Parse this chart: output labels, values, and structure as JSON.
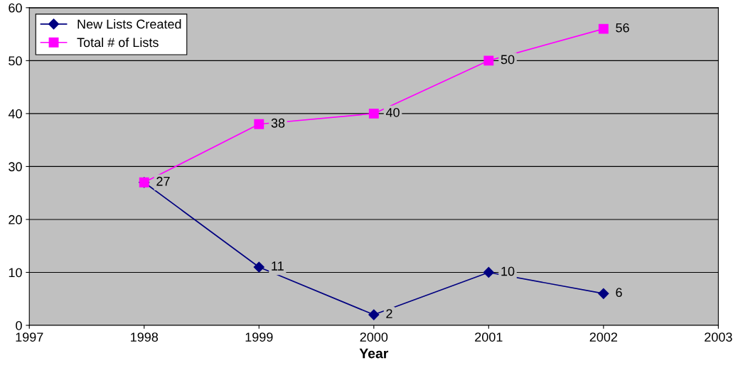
{
  "chart_data": {
    "type": "line",
    "xlabel": "Year",
    "x": [
      1998,
      1999,
      2000,
      2001,
      2002
    ],
    "series": [
      {
        "name": "New Lists Created",
        "color": "#000080",
        "marker": "diamond",
        "values": [
          27,
          11,
          2,
          10,
          6
        ],
        "value_labels": [
          "27",
          "11",
          "2",
          "10",
          "6"
        ]
      },
      {
        "name": "Total # of Lists",
        "color": "#ff00ff",
        "marker": "square",
        "values": [
          27,
          38,
          40,
          50,
          56
        ],
        "value_labels": [
          null,
          "38",
          "40",
          "50",
          "56"
        ]
      }
    ],
    "xlim": [
      1997,
      2003
    ],
    "xticks": [
      1997,
      1998,
      1999,
      2000,
      2001,
      2002,
      2003
    ],
    "ylim": [
      0,
      60
    ],
    "yticks": [
      0,
      10,
      20,
      30,
      40,
      50,
      60
    ],
    "grid": "y",
    "legend": "top left",
    "line_style": "solid"
  }
}
